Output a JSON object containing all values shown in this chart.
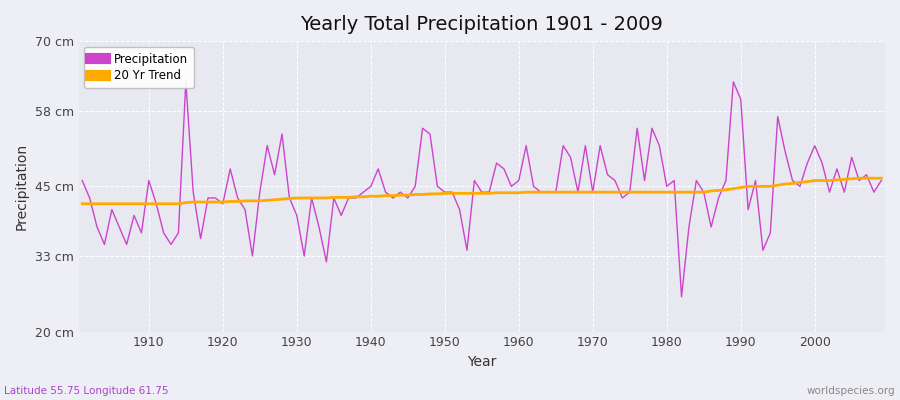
{
  "title": "Yearly Total Precipitation 1901 - 2009",
  "xlabel": "Year",
  "ylabel": "Precipitation",
  "subtitle": "Latitude 55.75 Longitude 61.75",
  "watermark": "worldspecies.org",
  "background_color": "#eeeef5",
  "plot_bg_color": "#e8e8f0",
  "precip_color": "#cc44cc",
  "trend_color": "#ffaa00",
  "ylim": [
    20,
    70
  ],
  "yticks": [
    20,
    33,
    45,
    58,
    70
  ],
  "ytick_labels": [
    "20 cm",
    "33 cm",
    "45 cm",
    "58 cm",
    "70 cm"
  ],
  "years": [
    1901,
    1902,
    1903,
    1904,
    1905,
    1906,
    1907,
    1908,
    1909,
    1910,
    1911,
    1912,
    1913,
    1914,
    1915,
    1916,
    1917,
    1918,
    1919,
    1920,
    1921,
    1922,
    1923,
    1924,
    1925,
    1926,
    1927,
    1928,
    1929,
    1930,
    1931,
    1932,
    1933,
    1934,
    1935,
    1936,
    1937,
    1938,
    1939,
    1940,
    1941,
    1942,
    1943,
    1944,
    1945,
    1946,
    1947,
    1948,
    1949,
    1950,
    1951,
    1952,
    1953,
    1954,
    1955,
    1956,
    1957,
    1958,
    1959,
    1960,
    1961,
    1962,
    1963,
    1964,
    1965,
    1966,
    1967,
    1968,
    1969,
    1970,
    1971,
    1972,
    1973,
    1974,
    1975,
    1976,
    1977,
    1978,
    1979,
    1980,
    1981,
    1982,
    1983,
    1984,
    1985,
    1986,
    1987,
    1988,
    1989,
    1990,
    1991,
    1992,
    1993,
    1994,
    1995,
    1996,
    1997,
    1998,
    1999,
    2000,
    2001,
    2002,
    2003,
    2004,
    2005,
    2006,
    2007,
    2008,
    2009
  ],
  "precip": [
    46,
    43,
    38,
    35,
    41,
    38,
    35,
    40,
    37,
    46,
    42,
    37,
    35,
    37,
    63,
    44,
    36,
    43,
    43,
    42,
    48,
    43,
    41,
    33,
    44,
    52,
    47,
    54,
    43,
    40,
    33,
    43,
    38,
    32,
    43,
    40,
    43,
    43,
    44,
    45,
    48,
    44,
    43,
    44,
    43,
    45,
    55,
    54,
    45,
    44,
    44,
    41,
    34,
    46,
    44,
    44,
    49,
    48,
    45,
    46,
    52,
    45,
    44,
    44,
    44,
    52,
    50,
    44,
    52,
    44,
    52,
    47,
    46,
    43,
    44,
    55,
    46,
    55,
    52,
    45,
    46,
    26,
    38,
    46,
    44,
    38,
    43,
    46,
    63,
    60,
    41,
    46,
    34,
    37,
    57,
    51,
    46,
    45,
    49,
    52,
    49,
    44,
    48,
    44,
    50,
    46,
    47,
    44,
    46
  ],
  "trend": [
    42.0,
    42.0,
    42.0,
    42.0,
    42.0,
    42.0,
    42.0,
    42.0,
    42.0,
    42.0,
    42.0,
    42.0,
    42.0,
    42.0,
    42.2,
    42.3,
    42.3,
    42.3,
    42.3,
    42.3,
    42.4,
    42.4,
    42.5,
    42.5,
    42.5,
    42.6,
    42.7,
    42.8,
    42.9,
    43.0,
    43.0,
    43.0,
    43.0,
    43.0,
    43.1,
    43.1,
    43.1,
    43.2,
    43.2,
    43.3,
    43.3,
    43.4,
    43.4,
    43.5,
    43.5,
    43.6,
    43.6,
    43.7,
    43.7,
    43.8,
    43.8,
    43.8,
    43.8,
    43.8,
    43.8,
    43.8,
    43.9,
    43.9,
    43.9,
    43.9,
    44.0,
    44.0,
    44.0,
    44.0,
    44.0,
    44.0,
    44.0,
    44.0,
    44.0,
    44.0,
    44.0,
    44.0,
    44.0,
    44.0,
    44.0,
    44.0,
    44.0,
    44.0,
    44.0,
    44.0,
    44.0,
    44.0,
    44.0,
    44.0,
    44.0,
    44.2,
    44.3,
    44.4,
    44.6,
    44.8,
    45.0,
    45.0,
    45.0,
    45.0,
    45.2,
    45.4,
    45.5,
    45.7,
    45.8,
    46.0,
    46.0,
    46.0,
    46.1,
    46.2,
    46.3,
    46.4,
    46.4,
    46.4,
    46.4
  ]
}
